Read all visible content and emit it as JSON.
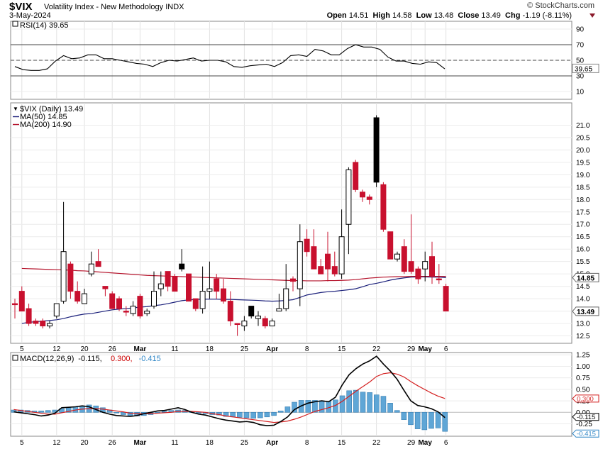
{
  "header": {
    "symbol": "$VIX",
    "name": "Volatility Index - New Methodology  INDX",
    "date": "3-May-2024",
    "copyright": "© StockCharts.com",
    "ohlc": {
      "open_label": "Open",
      "open": "14.51",
      "high_label": "High",
      "high": "14.58",
      "low_label": "Low",
      "low": "13.48",
      "close_label": "Close",
      "close": "13.49",
      "chg_label": "Chg",
      "chg": "-1.19 (-8.11%)"
    }
  },
  "chart_data": [
    {
      "type": "line",
      "panel": "RSI",
      "legend": "RSI(14) 39.65",
      "current_label": "39.65",
      "ylim": [
        0,
        100
      ],
      "yticks": [
        10,
        30,
        50,
        70,
        90
      ],
      "reference_lines": [
        30,
        50,
        70
      ],
      "values": [
        42,
        38,
        37,
        37,
        39,
        49,
        56,
        52,
        53,
        57,
        57,
        52,
        52,
        50,
        48,
        46,
        45,
        42,
        47,
        50,
        49,
        51,
        53,
        49,
        50,
        50,
        48,
        42,
        41,
        43,
        44,
        45,
        42,
        47,
        56,
        57,
        55,
        64,
        62,
        57,
        57,
        65,
        70,
        67,
        67,
        64,
        54,
        49,
        49,
        46,
        45,
        48,
        47,
        39
      ]
    },
    {
      "type": "candlestick",
      "panel": "Price",
      "legend": [
        {
          "label": "$VIX (Daily) 13.49",
          "color": "#000000"
        },
        {
          "label": "MA(50) 14.85",
          "color": "#1a1f7a"
        },
        {
          "label": "MA(200) 14.90",
          "color": "#b5142c"
        }
      ],
      "current_labels": [
        "14.85",
        "13.49"
      ],
      "ylim": [
        12.2,
        21.9
      ],
      "yticks": [
        12.5,
        13.0,
        13.5,
        14.0,
        14.5,
        15.0,
        15.5,
        16.0,
        16.5,
        17.0,
        17.5,
        18.0,
        18.5,
        19.0,
        19.5,
        20.0,
        20.5,
        21.0
      ],
      "x_labels": [
        {
          "i": 1,
          "label": "5"
        },
        {
          "i": 6,
          "label": "12"
        },
        {
          "i": 10,
          "label": "20"
        },
        {
          "i": 14,
          "label": "26"
        },
        {
          "i": 18,
          "label": "Mar"
        },
        {
          "i": 23,
          "label": "11"
        },
        {
          "i": 28,
          "label": "18"
        },
        {
          "i": 33,
          "label": "25"
        },
        {
          "i": 37,
          "label": "Apr"
        },
        {
          "i": 42,
          "label": "8"
        },
        {
          "i": 47,
          "label": "15"
        },
        {
          "i": 52,
          "label": "22"
        },
        {
          "i": 57,
          "label": "29"
        },
        {
          "i": 59,
          "label": "May"
        },
        {
          "i": 62,
          "label": "6"
        }
      ],
      "candles": [
        {
          "o": 13.8,
          "h": 14.0,
          "l": 13.2,
          "c": 13.8,
          "k": "down"
        },
        {
          "o": 14.3,
          "h": 14.5,
          "l": 13.5,
          "c": 13.5,
          "k": "down"
        },
        {
          "o": 13.6,
          "h": 13.8,
          "l": 12.9,
          "c": 13.0,
          "k": "down"
        },
        {
          "o": 13.1,
          "h": 13.2,
          "l": 12.9,
          "c": 13.0,
          "k": "down"
        },
        {
          "o": 13.1,
          "h": 13.2,
          "l": 12.8,
          "c": 12.9,
          "k": "down"
        },
        {
          "o": 12.9,
          "h": 13.1,
          "l": 12.8,
          "c": 13.0,
          "k": "up"
        },
        {
          "o": 13.3,
          "h": 13.8,
          "l": 13.2,
          "c": 13.8,
          "k": "up"
        },
        {
          "o": 13.9,
          "h": 17.9,
          "l": 13.8,
          "c": 15.9,
          "k": "up"
        },
        {
          "o": 15.4,
          "h": 15.5,
          "l": 14.0,
          "c": 14.3,
          "k": "down"
        },
        {
          "o": 14.3,
          "h": 14.7,
          "l": 13.8,
          "c": 13.9,
          "k": "down"
        },
        {
          "o": 13.8,
          "h": 14.4,
          "l": 13.8,
          "c": 14.2,
          "k": "up"
        },
        {
          "o": 15.0,
          "h": 15.9,
          "l": 14.9,
          "c": 15.4,
          "k": "up"
        },
        {
          "o": 15.5,
          "h": 16.0,
          "l": 15.3,
          "c": 15.3,
          "k": "down"
        },
        {
          "o": 14.5,
          "h": 14.5,
          "l": 14.1,
          "c": 14.4,
          "k": "down"
        },
        {
          "o": 14.2,
          "h": 14.3,
          "l": 13.6,
          "c": 13.6,
          "k": "down"
        },
        {
          "o": 14.0,
          "h": 14.1,
          "l": 13.5,
          "c": 13.6,
          "k": "down"
        },
        {
          "o": 13.5,
          "h": 13.7,
          "l": 13.3,
          "c": 13.5,
          "k": "down"
        },
        {
          "o": 13.4,
          "h": 13.9,
          "l": 13.3,
          "c": 13.7,
          "k": "up"
        },
        {
          "o": 14.1,
          "h": 14.2,
          "l": 13.2,
          "c": 13.3,
          "k": "down"
        },
        {
          "o": 13.4,
          "h": 13.6,
          "l": 13.3,
          "c": 13.5,
          "k": "up"
        },
        {
          "o": 13.7,
          "h": 15.1,
          "l": 13.6,
          "c": 14.3,
          "k": "up"
        },
        {
          "o": 14.4,
          "h": 15.1,
          "l": 14.1,
          "c": 14.6,
          "k": "up"
        },
        {
          "o": 15.1,
          "h": 15.1,
          "l": 14.3,
          "c": 14.5,
          "k": "down"
        },
        {
          "o": 14.9,
          "h": 15.0,
          "l": 14.3,
          "c": 14.3,
          "k": "down"
        },
        {
          "o": 15.4,
          "h": 16.0,
          "l": 15.1,
          "c": 15.2,
          "k": "black"
        },
        {
          "o": 15.0,
          "h": 15.0,
          "l": 13.9,
          "c": 13.9,
          "k": "down"
        },
        {
          "o": 14.0,
          "h": 14.0,
          "l": 13.5,
          "c": 13.6,
          "k": "down"
        },
        {
          "o": 13.6,
          "h": 15.3,
          "l": 13.4,
          "c": 14.3,
          "k": "up"
        },
        {
          "o": 14.3,
          "h": 15.5,
          "l": 14.0,
          "c": 14.4,
          "k": "up"
        },
        {
          "o": 14.8,
          "h": 15.0,
          "l": 14.0,
          "c": 14.3,
          "k": "down"
        },
        {
          "o": 14.4,
          "h": 14.8,
          "l": 13.8,
          "c": 13.9,
          "k": "down"
        },
        {
          "o": 13.9,
          "h": 14.3,
          "l": 12.9,
          "c": 13.1,
          "k": "down"
        },
        {
          "o": 13.0,
          "h": 13.0,
          "l": 12.5,
          "c": 13.0,
          "k": "down"
        },
        {
          "o": 12.9,
          "h": 13.3,
          "l": 12.7,
          "c": 13.1,
          "k": "up"
        },
        {
          "o": 13.7,
          "h": 13.7,
          "l": 13.2,
          "c": 13.3,
          "k": "black"
        },
        {
          "o": 13.2,
          "h": 13.5,
          "l": 12.9,
          "c": 13.3,
          "k": "up"
        },
        {
          "o": 13.2,
          "h": 13.3,
          "l": 12.8,
          "c": 12.9,
          "k": "down"
        },
        {
          "o": 12.9,
          "h": 13.2,
          "l": 12.9,
          "c": 13.1,
          "k": "up"
        },
        {
          "o": 13.5,
          "h": 14.2,
          "l": 13.5,
          "c": 13.6,
          "k": "up"
        },
        {
          "o": 13.6,
          "h": 15.4,
          "l": 13.5,
          "c": 14.4,
          "k": "up"
        },
        {
          "o": 14.7,
          "h": 14.9,
          "l": 14.3,
          "c": 14.8,
          "k": "down"
        },
        {
          "o": 14.4,
          "h": 17.0,
          "l": 13.7,
          "c": 16.3,
          "k": "up"
        },
        {
          "o": 16.4,
          "h": 16.8,
          "l": 15.7,
          "c": 15.9,
          "k": "down"
        },
        {
          "o": 16.1,
          "h": 16.8,
          "l": 15.2,
          "c": 15.2,
          "k": "down"
        },
        {
          "o": 15.3,
          "h": 15.6,
          "l": 15.0,
          "c": 15.0,
          "k": "down"
        },
        {
          "o": 15.8,
          "h": 16.7,
          "l": 14.7,
          "c": 15.2,
          "k": "down"
        },
        {
          "o": 15.3,
          "h": 15.9,
          "l": 14.9,
          "c": 15.0,
          "k": "down"
        },
        {
          "o": 15.0,
          "h": 17.6,
          "l": 14.8,
          "c": 16.5,
          "k": "up"
        },
        {
          "o": 17.0,
          "h": 19.3,
          "l": 15.8,
          "c": 19.2,
          "k": "up"
        },
        {
          "o": 19.5,
          "h": 19.6,
          "l": 18.3,
          "c": 18.4,
          "k": "down"
        },
        {
          "o": 18.3,
          "h": 18.4,
          "l": 17.9,
          "c": 18.1,
          "k": "down"
        },
        {
          "o": 18.1,
          "h": 18.2,
          "l": 17.8,
          "c": 18.0,
          "k": "down"
        },
        {
          "o": 18.7,
          "h": 21.4,
          "l": 18.5,
          "c": 21.3,
          "k": "black"
        },
        {
          "o": 18.6,
          "h": 18.7,
          "l": 16.7,
          "c": 16.8,
          "k": "down"
        },
        {
          "o": 16.7,
          "h": 16.7,
          "l": 15.6,
          "c": 15.6,
          "k": "down"
        },
        {
          "o": 15.6,
          "h": 15.9,
          "l": 15.5,
          "c": 15.8,
          "k": "up"
        },
        {
          "o": 16.1,
          "h": 16.4,
          "l": 15.0,
          "c": 15.1,
          "k": "down"
        },
        {
          "o": 15.5,
          "h": 17.4,
          "l": 15.0,
          "c": 15.1,
          "k": "down"
        },
        {
          "o": 15.2,
          "h": 15.3,
          "l": 14.6,
          "c": 14.8,
          "k": "down"
        },
        {
          "o": 15.2,
          "h": 15.9,
          "l": 14.7,
          "c": 15.5,
          "k": "up"
        },
        {
          "o": 15.7,
          "h": 16.3,
          "l": 14.6,
          "c": 14.9,
          "k": "down"
        },
        {
          "o": 14.8,
          "h": 15.4,
          "l": 14.6,
          "c": 14.8,
          "k": "down"
        },
        {
          "o": 14.5,
          "h": 14.6,
          "l": 13.5,
          "c": 13.5,
          "k": "down"
        }
      ],
      "series": [
        {
          "name": "MA(50)",
          "color": "#1a1f7a",
          "values": [
            13.0,
            13.05,
            13.07,
            13.1,
            13.12,
            13.15,
            13.2,
            13.27,
            13.33,
            13.38,
            13.4,
            13.45,
            13.5,
            13.55,
            13.58,
            13.6,
            13.63,
            13.66,
            13.68,
            13.72,
            13.75,
            13.8,
            13.86,
            13.92,
            13.95,
            13.97,
            13.98,
            13.98,
            13.98,
            13.97,
            13.97,
            13.96,
            13.95,
            13.94,
            13.93,
            13.91,
            13.9,
            13.91,
            13.93,
            13.96,
            14.05,
            14.15,
            14.2,
            14.25,
            14.28,
            14.3,
            14.33,
            14.36,
            14.4,
            14.48,
            14.57,
            14.62,
            14.68,
            14.75,
            14.8,
            14.84,
            14.87,
            14.88,
            14.88,
            14.87,
            14.87,
            14.85
          ]
        },
        {
          "name": "MA(200)",
          "color": "#b5142c",
          "values": [
            15.22,
            15.21,
            15.2,
            15.19,
            15.18,
            15.17,
            15.16,
            15.15,
            15.13,
            15.12,
            15.1,
            15.08,
            15.06,
            15.04,
            15.02,
            15.0,
            14.98,
            14.96,
            14.94,
            14.93,
            14.92,
            14.91,
            14.9,
            14.89,
            14.88,
            14.87,
            14.86,
            14.85,
            14.84,
            14.83,
            14.82,
            14.81,
            14.8,
            14.79,
            14.78,
            14.77,
            14.76,
            14.75,
            14.74,
            14.73,
            14.73,
            14.72,
            14.72,
            14.72,
            14.73,
            14.73,
            14.74,
            14.75,
            14.77,
            14.8,
            14.83,
            14.85,
            14.87,
            14.88,
            14.89,
            14.89,
            14.9,
            14.9,
            14.9,
            14.9,
            14.9,
            14.9
          ]
        }
      ]
    },
    {
      "type": "line+bar",
      "panel": "MACD",
      "legend": [
        {
          "label": "MACD(12,26,9)",
          "color": "#000000"
        },
        {
          "label": "-0.115,",
          "color": "#000000"
        },
        {
          "label": "0.300,",
          "color": "#cc0000"
        },
        {
          "label": "-0.415",
          "color": "#2f86c6"
        }
      ],
      "current_labels": [
        "0.300",
        "-0.115",
        "-0.415"
      ],
      "ylim": [
        -0.52,
        1.3
      ],
      "yticks": [
        1.25,
        1.0,
        0.75,
        0.5,
        0.25,
        0.0,
        -0.25
      ],
      "macd": [
        0.01,
        -0.01,
        -0.03,
        -0.05,
        -0.08,
        -0.06,
        -0.02,
        0.1,
        0.11,
        0.12,
        0.14,
        0.12,
        0.06,
        0.0,
        -0.04,
        -0.07,
        -0.08,
        -0.09,
        -0.07,
        -0.03,
        0.0,
        0.03,
        0.04,
        0.07,
        0.1,
        0.06,
        0.0,
        -0.04,
        -0.06,
        -0.1,
        -0.14,
        -0.17,
        -0.19,
        -0.21,
        -0.2,
        -0.22,
        -0.27,
        -0.29,
        -0.28,
        -0.2,
        -0.1,
        0.06,
        0.14,
        0.2,
        0.23,
        0.25,
        0.23,
        0.33,
        0.6,
        0.82,
        0.95,
        1.05,
        1.12,
        1.22,
        1.05,
        0.9,
        0.72,
        0.48,
        0.25,
        0.15,
        0.12,
        0.08,
        0.01,
        -0.115
      ],
      "signal": [
        0.06,
        0.04,
        0.02,
        0.0,
        -0.02,
        -0.04,
        -0.04,
        -0.01,
        0.02,
        0.05,
        0.07,
        0.08,
        0.08,
        0.07,
        0.05,
        0.03,
        0.01,
        -0.02,
        -0.03,
        -0.03,
        -0.03,
        -0.02,
        -0.01,
        0.0,
        0.02,
        0.02,
        0.02,
        0.01,
        0.0,
        -0.03,
        -0.05,
        -0.08,
        -0.1,
        -0.12,
        -0.14,
        -0.16,
        -0.18,
        -0.2,
        -0.22,
        -0.21,
        -0.19,
        -0.15,
        -0.1,
        -0.04,
        0.02,
        0.06,
        0.1,
        0.15,
        0.24,
        0.35,
        0.46,
        0.56,
        0.66,
        0.78,
        0.84,
        0.86,
        0.83,
        0.77,
        0.67,
        0.58,
        0.5,
        0.42,
        0.35,
        0.3
      ],
      "histogram": [
        0.05,
        0.05,
        0.04,
        0.03,
        0.03,
        0.04,
        0.05,
        0.08,
        0.1,
        0.12,
        0.14,
        0.16,
        0.14,
        0.1,
        0.05,
        0.0,
        -0.05,
        -0.07,
        -0.08,
        -0.07,
        -0.05,
        0.0,
        0.02,
        0.04,
        0.05,
        0.04,
        0.01,
        -0.02,
        -0.03,
        -0.05,
        -0.06,
        -0.09,
        -0.1,
        -0.11,
        -0.12,
        -0.13,
        -0.12,
        -0.1,
        -0.07,
        0.03,
        0.12,
        0.22,
        0.26,
        0.26,
        0.26,
        0.25,
        0.24,
        0.27,
        0.36,
        0.47,
        0.48,
        0.44,
        0.43,
        0.38,
        0.35,
        0.2,
        0.04,
        -0.16,
        -0.27,
        -0.36,
        -0.38,
        -0.35,
        -0.34,
        -0.415
      ]
    }
  ]
}
